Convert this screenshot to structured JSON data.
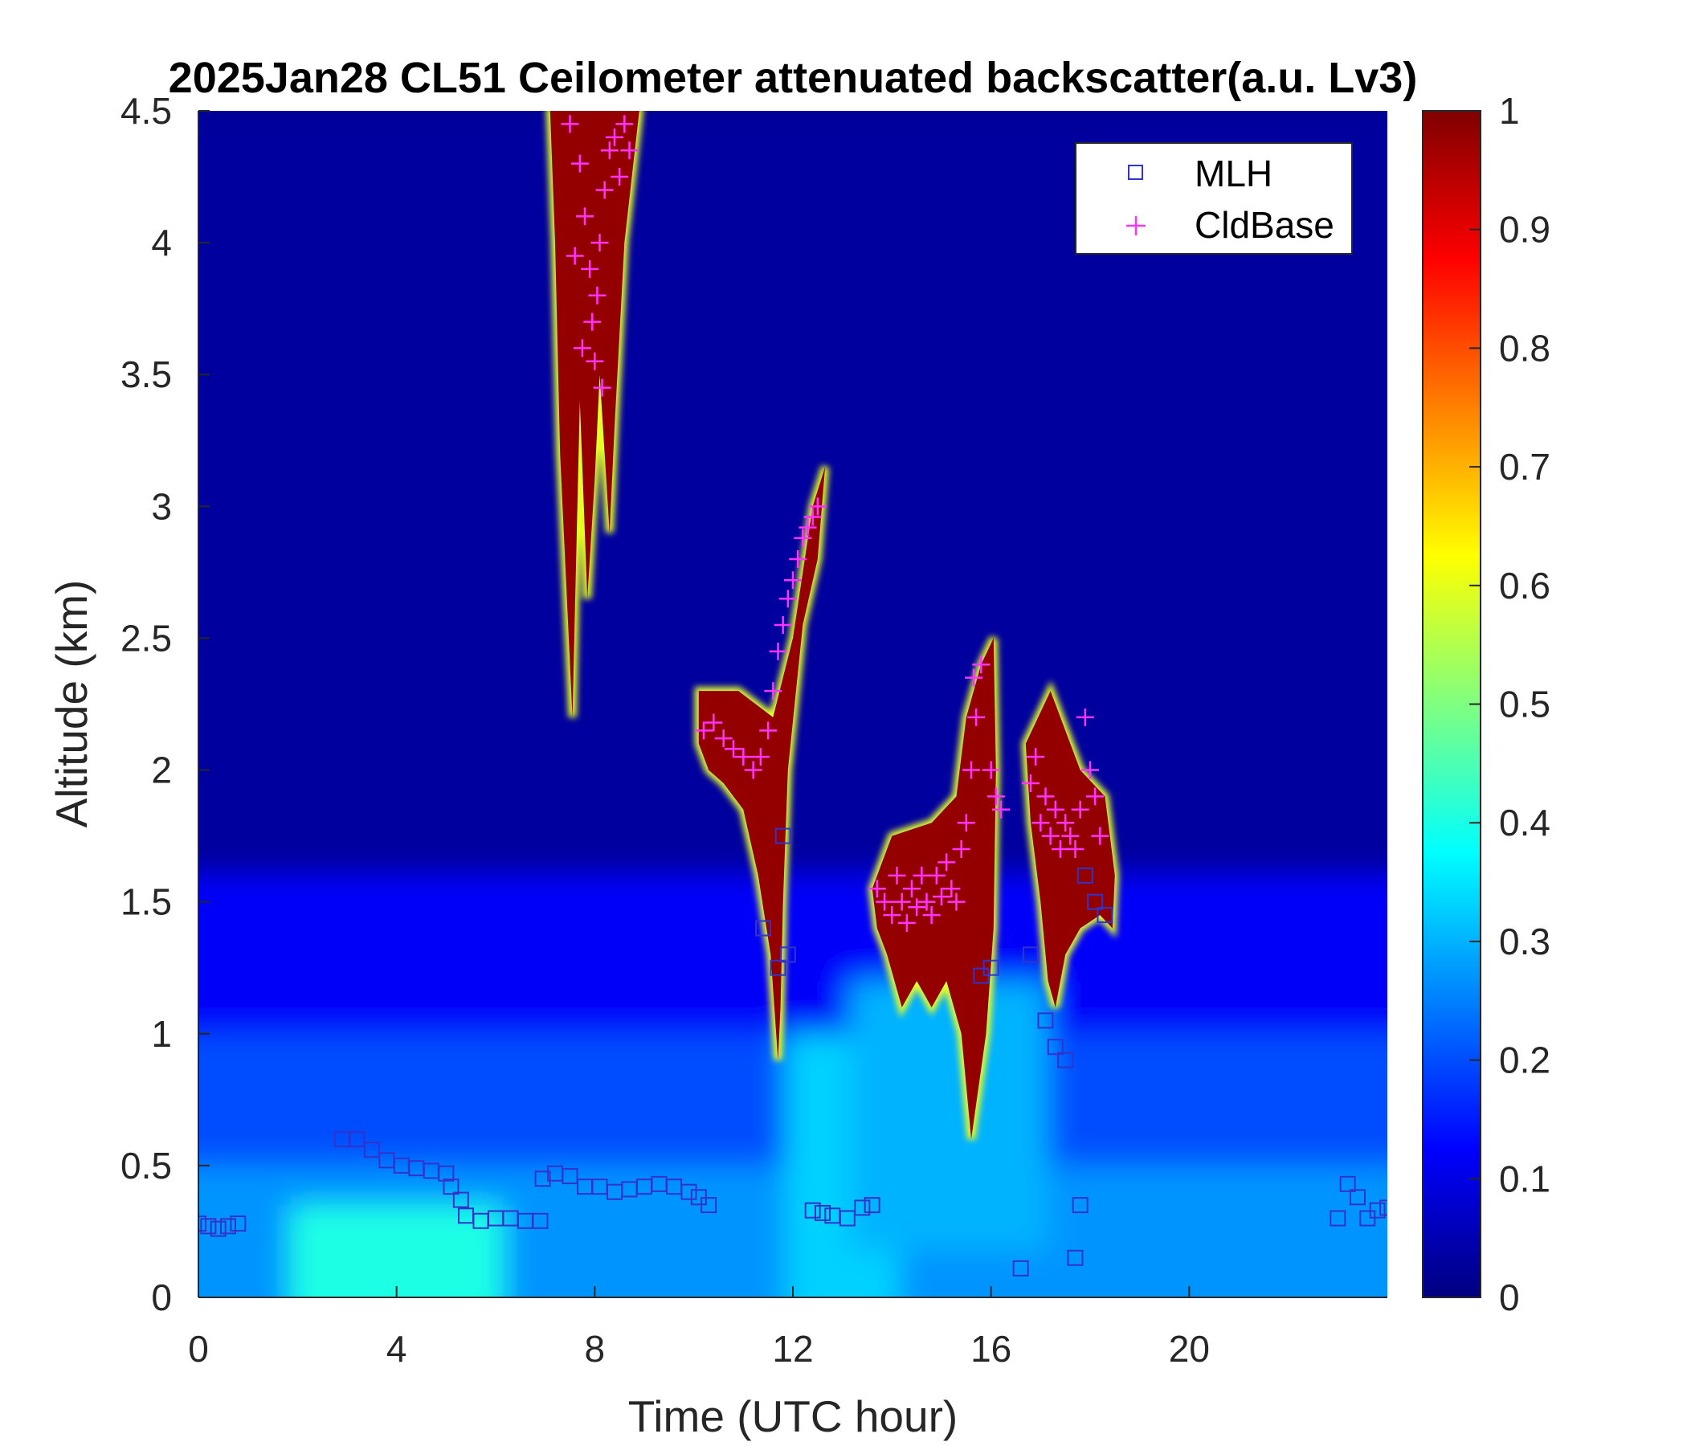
{
  "chart_data": {
    "type": "heatmap",
    "title": "2025Jan28 CL51 Ceilometer attenuated backscatter(a.u. Lv3)",
    "xlabel": "Time (UTC hour)",
    "ylabel": "Altitude (km)",
    "xlim": [
      0,
      24
    ],
    "ylim": [
      0,
      4.5
    ],
    "x_ticks": [
      "0",
      "4",
      "8",
      "12",
      "16",
      "20"
    ],
    "x_tick_values": [
      0,
      4,
      8,
      12,
      16,
      20
    ],
    "y_ticks": [
      "0",
      "0.5",
      "1",
      "1.5",
      "2",
      "2.5",
      "3",
      "3.5",
      "4",
      "4.5"
    ],
    "y_tick_values": [
      0,
      0.5,
      1,
      1.5,
      2,
      2.5,
      3,
      3.5,
      4,
      4.5
    ],
    "colorbar": {
      "colormap": "jet",
      "range": [
        0,
        1
      ],
      "ticks": [
        "0",
        "0.1",
        "0.2",
        "0.3",
        "0.4",
        "0.5",
        "0.6",
        "0.7",
        "0.8",
        "0.9",
        "1"
      ],
      "tick_values": [
        0,
        0.1,
        0.2,
        0.3,
        0.4,
        0.5,
        0.6,
        0.7,
        0.8,
        0.9,
        1
      ]
    },
    "legend": {
      "position": "top-right",
      "entries": [
        {
          "name": "MLH",
          "marker": "square",
          "color": "#3333cc"
        },
        {
          "name": "CldBase",
          "marker": "plus",
          "color": "#ff33ff"
        }
      ]
    },
    "background_bands": [
      {
        "t0": 0,
        "t1": 24,
        "z0": 1.5,
        "z1": 4.5,
        "value": 0.03
      },
      {
        "t0": 0,
        "t1": 24,
        "z0": 0.9,
        "z1": 1.6,
        "value": 0.12
      },
      {
        "t0": 0,
        "t1": 24,
        "z0": 0.5,
        "z1": 1.0,
        "value": 0.2
      },
      {
        "t0": 0,
        "t1": 24,
        "z0": 0.0,
        "z1": 0.5,
        "value": 0.27
      },
      {
        "t0": 2.5,
        "t1": 5.5,
        "z0": 0.0,
        "z1": 0.35,
        "value": 0.4
      },
      {
        "t0": 12.5,
        "t1": 13.5,
        "z0": 0.0,
        "z1": 1.0,
        "value": 0.33
      },
      {
        "t0": 13.8,
        "t1": 16.5,
        "z0": 0.3,
        "z1": 1.2,
        "value": 0.3
      }
    ],
    "cloud_layers": [
      {
        "name": "high-cloud-8h",
        "value": 0.98,
        "points": [
          [
            7.1,
            4.5
          ],
          [
            8.9,
            4.5
          ],
          [
            8.6,
            4.0
          ],
          [
            8.4,
            3.3
          ],
          [
            8.3,
            2.9
          ],
          [
            8.1,
            3.5
          ],
          [
            8.0,
            3.1
          ],
          [
            7.85,
            2.65
          ],
          [
            7.7,
            3.4
          ],
          [
            7.55,
            2.2
          ],
          [
            7.3,
            3.2
          ],
          [
            7.2,
            4.0
          ]
        ]
      },
      {
        "name": "cloud-11h",
        "value": 0.98,
        "points": [
          [
            10.1,
            2.3
          ],
          [
            10.9,
            2.3
          ],
          [
            11.6,
            2.2
          ],
          [
            12.0,
            2.5
          ],
          [
            12.4,
            3.0
          ],
          [
            12.65,
            3.15
          ],
          [
            12.5,
            2.8
          ],
          [
            12.2,
            2.55
          ],
          [
            11.9,
            2.0
          ],
          [
            11.8,
            1.5
          ],
          [
            11.75,
            1.1
          ],
          [
            11.7,
            0.9
          ],
          [
            11.55,
            1.3
          ],
          [
            11.3,
            1.6
          ],
          [
            11.0,
            1.85
          ],
          [
            10.6,
            1.95
          ],
          [
            10.3,
            2.0
          ],
          [
            10.1,
            2.1
          ]
        ]
      },
      {
        "name": "cloud-13-16h",
        "value": 0.98,
        "points": [
          [
            13.6,
            1.55
          ],
          [
            14.0,
            1.75
          ],
          [
            14.8,
            1.8
          ],
          [
            15.3,
            1.9
          ],
          [
            15.5,
            2.2
          ],
          [
            15.8,
            2.4
          ],
          [
            16.05,
            2.5
          ],
          [
            16.1,
            2.0
          ],
          [
            16.05,
            1.4
          ],
          [
            15.9,
            1.0
          ],
          [
            15.6,
            0.6
          ],
          [
            15.4,
            1.0
          ],
          [
            15.1,
            1.2
          ],
          [
            14.8,
            1.1
          ],
          [
            14.5,
            1.2
          ],
          [
            14.2,
            1.1
          ],
          [
            13.9,
            1.3
          ],
          [
            13.7,
            1.4
          ]
        ]
      },
      {
        "name": "cloud-17-18h",
        "value": 0.98,
        "points": [
          [
            16.7,
            2.1
          ],
          [
            17.2,
            2.3
          ],
          [
            17.8,
            2.0
          ],
          [
            18.3,
            1.9
          ],
          [
            18.5,
            1.6
          ],
          [
            18.45,
            1.4
          ],
          [
            18.2,
            1.45
          ],
          [
            17.8,
            1.4
          ],
          [
            17.5,
            1.3
          ],
          [
            17.3,
            1.1
          ],
          [
            17.15,
            1.2
          ],
          [
            17.0,
            1.5
          ],
          [
            16.8,
            1.8
          ]
        ]
      }
    ],
    "mlh": [
      [
        0.0,
        0.28
      ],
      [
        0.2,
        0.27
      ],
      [
        0.4,
        0.26
      ],
      [
        0.6,
        0.27
      ],
      [
        0.8,
        0.28
      ],
      [
        2.9,
        0.6
      ],
      [
        3.2,
        0.6
      ],
      [
        3.5,
        0.56
      ],
      [
        3.8,
        0.52
      ],
      [
        4.1,
        0.5
      ],
      [
        4.4,
        0.49
      ],
      [
        4.7,
        0.48
      ],
      [
        5.0,
        0.47
      ],
      [
        5.1,
        0.42
      ],
      [
        5.3,
        0.37
      ],
      [
        5.4,
        0.31
      ],
      [
        5.7,
        0.29
      ],
      [
        6.0,
        0.3
      ],
      [
        6.3,
        0.3
      ],
      [
        6.6,
        0.29
      ],
      [
        6.9,
        0.29
      ],
      [
        6.95,
        0.45
      ],
      [
        7.2,
        0.47
      ],
      [
        7.5,
        0.46
      ],
      [
        7.8,
        0.42
      ],
      [
        8.1,
        0.42
      ],
      [
        8.4,
        0.4
      ],
      [
        8.7,
        0.41
      ],
      [
        9.0,
        0.42
      ],
      [
        9.3,
        0.43
      ],
      [
        9.6,
        0.42
      ],
      [
        9.9,
        0.4
      ],
      [
        10.1,
        0.38
      ],
      [
        10.3,
        0.35
      ],
      [
        12.4,
        0.33
      ],
      [
        12.6,
        0.32
      ],
      [
        12.8,
        0.31
      ],
      [
        13.1,
        0.3
      ],
      [
        13.4,
        0.34
      ],
      [
        13.6,
        0.35
      ],
      [
        11.4,
        1.4
      ],
      [
        11.7,
        1.25
      ],
      [
        11.9,
        1.3
      ],
      [
        11.8,
        1.75
      ],
      [
        15.8,
        1.22
      ],
      [
        16.0,
        1.25
      ],
      [
        16.6,
        0.11
      ],
      [
        16.8,
        1.3
      ],
      [
        17.1,
        1.05
      ],
      [
        17.3,
        0.95
      ],
      [
        17.5,
        0.9
      ],
      [
        17.7,
        0.15
      ],
      [
        17.8,
        0.35
      ],
      [
        17.9,
        1.6
      ],
      [
        18.1,
        1.5
      ],
      [
        18.3,
        1.45
      ],
      [
        23.0,
        0.3
      ],
      [
        23.2,
        0.43
      ],
      [
        23.4,
        0.38
      ],
      [
        23.6,
        0.3
      ],
      [
        23.8,
        0.33
      ],
      [
        24.0,
        0.34
      ]
    ],
    "cldbase": [
      [
        7.5,
        4.45
      ],
      [
        7.7,
        4.3
      ],
      [
        7.8,
        4.1
      ],
      [
        7.9,
        3.9
      ],
      [
        7.95,
        3.7
      ],
      [
        8.0,
        3.55
      ],
      [
        8.05,
        3.8
      ],
      [
        8.1,
        4.0
      ],
      [
        8.2,
        4.2
      ],
      [
        8.3,
        4.35
      ],
      [
        8.4,
        4.4
      ],
      [
        8.5,
        4.25
      ],
      [
        8.6,
        4.45
      ],
      [
        8.7,
        4.35
      ],
      [
        7.6,
        3.95
      ],
      [
        7.75,
        3.6
      ],
      [
        8.15,
        3.45
      ],
      [
        10.2,
        2.15
      ],
      [
        10.4,
        2.18
      ],
      [
        10.6,
        2.12
      ],
      [
        10.8,
        2.08
      ],
      [
        11.0,
        2.05
      ],
      [
        11.2,
        2.0
      ],
      [
        11.35,
        2.05
      ],
      [
        11.5,
        2.15
      ],
      [
        11.6,
        2.3
      ],
      [
        11.7,
        2.45
      ],
      [
        11.8,
        2.55
      ],
      [
        11.9,
        2.65
      ],
      [
        12.0,
        2.72
      ],
      [
        12.1,
        2.8
      ],
      [
        12.2,
        2.88
      ],
      [
        12.3,
        2.92
      ],
      [
        12.4,
        2.96
      ],
      [
        12.5,
        3.0
      ],
      [
        13.7,
        1.55
      ],
      [
        13.85,
        1.5
      ],
      [
        14.0,
        1.45
      ],
      [
        14.1,
        1.6
      ],
      [
        14.2,
        1.5
      ],
      [
        14.3,
        1.42
      ],
      [
        14.4,
        1.55
      ],
      [
        14.5,
        1.48
      ],
      [
        14.6,
        1.6
      ],
      [
        14.7,
        1.5
      ],
      [
        14.8,
        1.45
      ],
      [
        14.9,
        1.6
      ],
      [
        15.0,
        1.52
      ],
      [
        15.1,
        1.65
      ],
      [
        15.2,
        1.55
      ],
      [
        15.3,
        1.5
      ],
      [
        15.4,
        1.7
      ],
      [
        15.5,
        1.8
      ],
      [
        15.6,
        2.0
      ],
      [
        15.7,
        2.2
      ],
      [
        15.8,
        2.4
      ],
      [
        15.65,
        2.35
      ],
      [
        16.0,
        2.0
      ],
      [
        16.1,
        1.9
      ],
      [
        16.2,
        1.85
      ],
      [
        16.8,
        1.95
      ],
      [
        16.9,
        2.05
      ],
      [
        17.0,
        1.8
      ],
      [
        17.1,
        1.9
      ],
      [
        17.2,
        1.75
      ],
      [
        17.3,
        1.85
      ],
      [
        17.4,
        1.7
      ],
      [
        17.5,
        1.8
      ],
      [
        17.6,
        1.75
      ],
      [
        17.7,
        1.7
      ],
      [
        17.8,
        1.85
      ],
      [
        17.9,
        2.2
      ],
      [
        18.0,
        2.0
      ],
      [
        18.1,
        1.9
      ],
      [
        18.2,
        1.75
      ]
    ]
  }
}
